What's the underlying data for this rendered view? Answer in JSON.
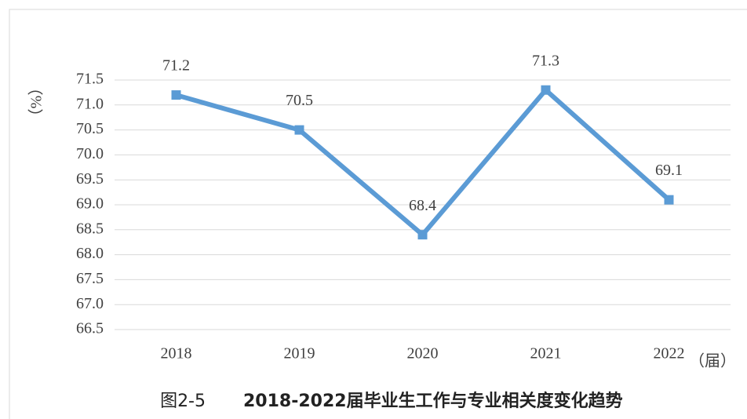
{
  "chart_data": {
    "type": "line",
    "y_label": "（%）",
    "x_label": "（届）",
    "caption": {
      "label": "图2-5",
      "text": "2018-2022届毕业生工作与专业相关度变化趋势"
    },
    "categories": [
      "2018",
      "2019",
      "2020",
      "2021",
      "2022"
    ],
    "series": [
      {
        "name": "相关度",
        "color": "#5b9bd5",
        "values": [
          71.2,
          70.5,
          68.4,
          71.3,
          69.1
        ]
      }
    ],
    "ylim": [
      66.5,
      71.5
    ],
    "yticks": [
      66.5,
      {
        "value": 67,
        "label": "67.0"
      },
      67.5,
      {
        "value": 68,
        "label": "68.0"
      },
      68.5,
      {
        "value": 69,
        "label": "69.0"
      },
      69.5,
      {
        "value": 70,
        "label": "70.0"
      },
      70.5,
      {
        "value": 71,
        "label": "71.0"
      },
      71.5
    ],
    "grid": true
  }
}
